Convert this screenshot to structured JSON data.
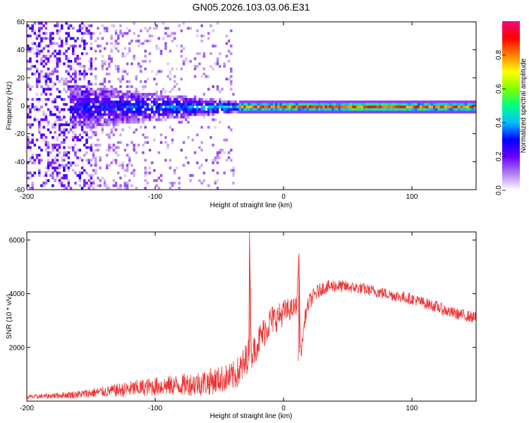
{
  "title": "GN05.2026.103.03.06.E31",
  "chart_data": [
    {
      "type": "heatmap",
      "name": "spectrogram",
      "xlabel": "Height of straight line (km)",
      "ylabel": "Frequency (Hz)",
      "xlim": [
        -200,
        150
      ],
      "ylim": [
        -60,
        60
      ],
      "xticks": [
        -200,
        -100,
        0,
        100
      ],
      "yticks": [
        60,
        40,
        20,
        0,
        -20,
        -40,
        -60
      ],
      "xtick_labels": [
        "-200",
        "-100",
        "0",
        "100"
      ],
      "ytick_labels": [
        "60",
        "40",
        "20",
        "0",
        "-20",
        "-40",
        "-60"
      ],
      "colorbar": {
        "label": "Normalized spectral amplitude",
        "range": [
          0,
          1
        ],
        "ticks": [
          0.0,
          0.2,
          0.4,
          0.6,
          0.8
        ],
        "tick_labels": [
          "0.0",
          "0.2",
          "0.4",
          "0.6",
          "0.8"
        ],
        "colors": [
          "#ffffff",
          "#b07cf0",
          "#6a00ff",
          "#0000ff",
          "#00c0ff",
          "#00ff80",
          "#80ff00",
          "#ffff00",
          "#ff8000",
          "#ff0000",
          "#ff0080"
        ]
      },
      "features": [
        {
          "name": "broadband noise",
          "x_range": [
            -200,
            -40
          ],
          "freq_spread_hz": 60,
          "amplitude": 0.1
        },
        {
          "name": "spreading signal",
          "x_range": [
            -165,
            -30
          ],
          "freq_spread_hz": [
            12,
            2
          ],
          "amplitude": 0.3
        },
        {
          "name": "narrow carrier line",
          "x_range": [
            -30,
            150
          ],
          "center_hz": 0,
          "amplitude": 0.85
        }
      ]
    },
    {
      "type": "line",
      "name": "snr",
      "xlabel": "Height of straight line (km)",
      "ylabel": "SNR (10 * v/v)",
      "xlim": [
        -200,
        150
      ],
      "ylim": [
        0,
        6300
      ],
      "xticks": [
        -200,
        -100,
        0,
        100
      ],
      "yticks": [
        2000,
        4000,
        6000
      ],
      "xtick_labels": [
        "-200",
        "-100",
        "0",
        "100"
      ],
      "ytick_labels": [
        "2000",
        "4000",
        "6000"
      ],
      "color": "#ee3333",
      "series": [
        {
          "name": "SNR",
          "x": [
            -200,
            -180,
            -160,
            -140,
            -120,
            -100,
            -80,
            -60,
            -50,
            -40,
            -35,
            -30,
            -27,
            -26.5,
            -25,
            -20,
            -15,
            -10,
            -5,
            0,
            5,
            10,
            12,
            13,
            14,
            15,
            17,
            20,
            25,
            30,
            40,
            50,
            60,
            70,
            80,
            90,
            100,
            110,
            120,
            130,
            140,
            150
          ],
          "y": [
            150,
            200,
            250,
            350,
            450,
            550,
            600,
            700,
            800,
            900,
            1100,
            1400,
            1900,
            6300,
            1700,
            2200,
            2600,
            3000,
            3100,
            3300,
            3400,
            3500,
            5500,
            2200,
            1800,
            2400,
            3200,
            3700,
            4000,
            4200,
            4300,
            4250,
            4200,
            4100,
            4000,
            3900,
            3800,
            3650,
            3500,
            3300,
            3200,
            3100
          ],
          "noise_amplitude": [
            80,
            100,
            150,
            200,
            300,
            350,
            400,
            500,
            500,
            550,
            600,
            700,
            600,
            0,
            500,
            600,
            600,
            600,
            500,
            500,
            400,
            400,
            0,
            200,
            200,
            250,
            300,
            300,
            300,
            250,
            250,
            220,
            220,
            220,
            220,
            220,
            220,
            220,
            220,
            220,
            220,
            220
          ]
        }
      ]
    }
  ]
}
